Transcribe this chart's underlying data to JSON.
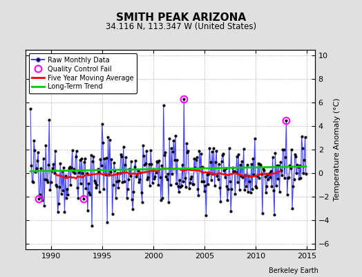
{
  "title": "SMITH PEAK ARIZONA",
  "subtitle": "34.116 N, 113.347 W (United States)",
  "ylabel": "Temperature Anomaly (°C)",
  "attribution": "Berkeley Earth",
  "xlim": [
    1987.5,
    2015.8
  ],
  "ylim": [
    -6.5,
    10.5
  ],
  "yticks": [
    -6,
    -4,
    -2,
    0,
    2,
    4,
    6,
    8,
    10
  ],
  "xticks": [
    1990,
    1995,
    2000,
    2005,
    2010,
    2015
  ],
  "bg_color": "#e0e0e0",
  "plot_bg_color": "#ffffff",
  "raw_line_color": "#4444ff",
  "raw_fill_color": "#aaaaff",
  "dot_color": "#000000",
  "ma_color": "#ff0000",
  "trend_color": "#00cc00",
  "qc_color": "#ff00ff",
  "seed": 12345
}
